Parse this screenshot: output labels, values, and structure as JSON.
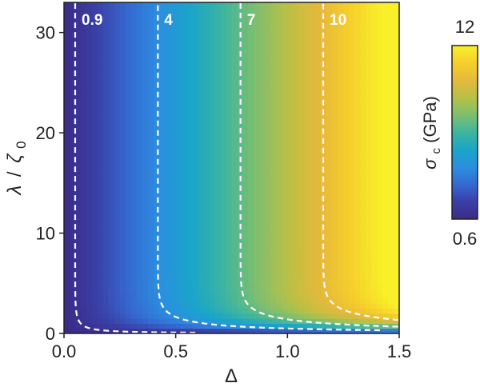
{
  "chart_data": {
    "type": "heatmap",
    "title": "",
    "xlabel": "Δ",
    "ylabel_parts": {
      "lambda": "λ",
      "slash": "/",
      "zeta": "ζ",
      "sub": "0"
    },
    "xlim": [
      0,
      1.5
    ],
    "ylim": [
      0,
      33
    ],
    "x_ticks": [
      "0.0",
      "0.5",
      "1.0",
      "1.5"
    ],
    "x_tick_values": [
      0,
      0.5,
      1.0,
      1.5
    ],
    "y_ticks": [
      "0",
      "10",
      "20",
      "30"
    ],
    "y_tick_values": [
      0,
      10,
      20,
      30
    ],
    "z_description": "critical strength σc increases with Δ and with λ/ζ0; near λ/ζ0 → 0 it drops to the minimum",
    "contours": [
      {
        "label": "0.9",
        "value": 0.9,
        "asymptote_x": 0.05
      },
      {
        "label": "4",
        "value": 4,
        "asymptote_x": 0.42
      },
      {
        "label": "7",
        "value": 7,
        "asymptote_x": 0.79
      },
      {
        "label": "10",
        "value": 10,
        "asymptote_x": 1.16
      }
    ],
    "colorbar": {
      "min": 0.6,
      "max": 12,
      "min_label": "0.6",
      "max_label": "12",
      "label_parts": {
        "sigma": "σ",
        "sub": "c",
        "unit": " (GPa)"
      }
    },
    "colormap": [
      "#3b2b86",
      "#3a3fa6",
      "#3569d1",
      "#2b8fe0",
      "#1aa5c9",
      "#3db59f",
      "#7dbf6f",
      "#b8c046",
      "#e5b93b",
      "#f6cf2b",
      "#f9f02a"
    ]
  }
}
